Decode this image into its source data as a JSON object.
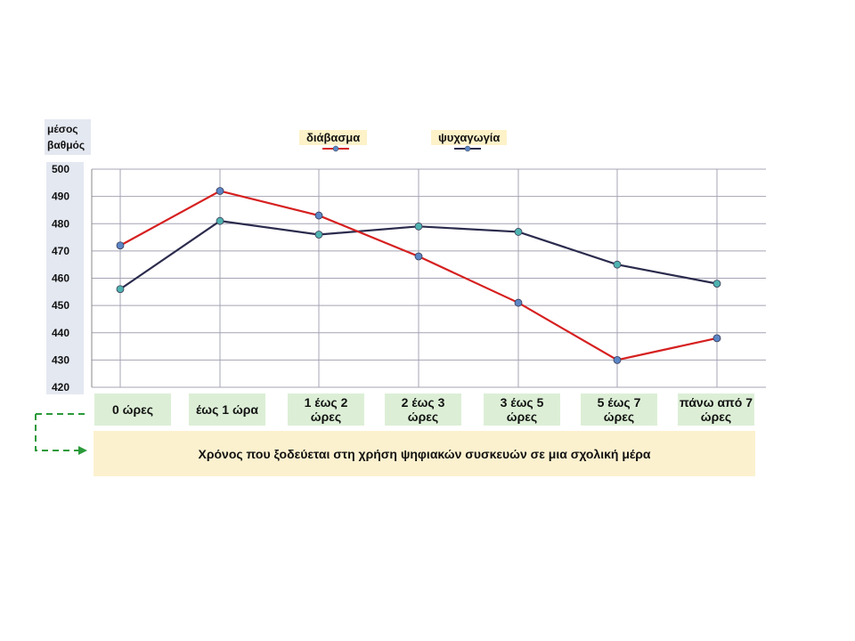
{
  "chart_data": {
    "type": "line",
    "ylabel": "μέσος βαθμός",
    "xlabel": "Χρόνος που ξοδεύεται στη χρήση  ψηφιακών  συσκευών  σε  μια σχολική μέρα",
    "ylim": [
      420,
      500
    ],
    "yticks": [
      420,
      430,
      440,
      450,
      460,
      470,
      480,
      490,
      500
    ],
    "categories": [
      "0 ώρες",
      "έως 1 ώρα",
      "1 έως 2 ώρες",
      "2 έως 3 ώρες",
      "3 έως 5 ώρες",
      "5 έως 7 ώρες",
      "πάνω από 7 ώρες"
    ],
    "series": [
      {
        "name": "διάβασμα",
        "color": "#d62020",
        "values": [
          472,
          492,
          483,
          468,
          451,
          430,
          438
        ]
      },
      {
        "name": "ψυχαγωγία",
        "color": "#2b2b4d",
        "values": [
          456,
          481,
          476,
          479,
          477,
          465,
          458
        ]
      }
    ],
    "marker_colors": {
      "teal": "#4fb3b0",
      "blue": "#5b86c5"
    },
    "grid": true,
    "legend_position": "top"
  }
}
